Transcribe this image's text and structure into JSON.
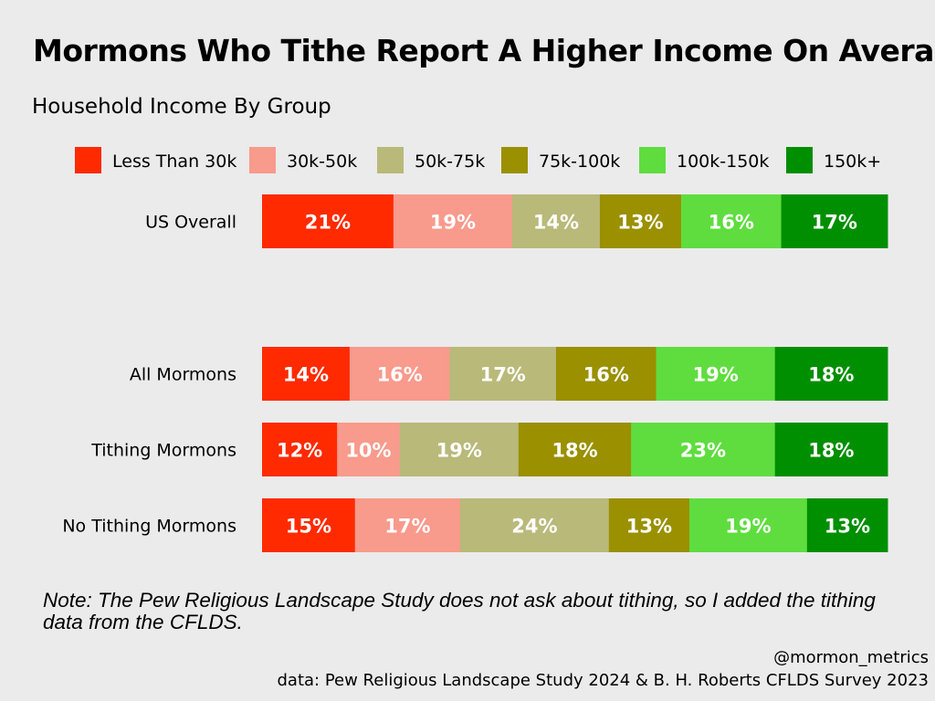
{
  "chart_data": {
    "type": "bar",
    "orientation": "horizontal",
    "stacked": true,
    "title": "Mormons Who Tithe Report A Higher Income On Average",
    "subtitle": "Household Income By Group",
    "xlabel": "",
    "ylabel": "",
    "legend_position": "top",
    "grid": false,
    "value_suffix": "%",
    "categories": [
      "US Overall",
      "All Mormons",
      "Tithing Mormons",
      "No Tithing Mormons"
    ],
    "series": [
      {
        "name": "Less Than 30k",
        "color": "#ff2a00",
        "values": [
          21,
          14,
          12,
          15
        ]
      },
      {
        "name": "30k-50k",
        "color": "#f89a8c",
        "values": [
          19,
          16,
          10,
          17
        ]
      },
      {
        "name": "50k-75k",
        "color": "#b9b97a",
        "values": [
          14,
          17,
          19,
          24
        ]
      },
      {
        "name": "75k-100k",
        "color": "#9a9000",
        "values": [
          13,
          16,
          18,
          13
        ]
      },
      {
        "name": "100k-150k",
        "color": "#5fdd3f",
        "values": [
          16,
          19,
          23,
          19
        ]
      },
      {
        "name": "150k+",
        "color": "#008f00",
        "values": [
          17,
          18,
          18,
          13
        ]
      }
    ]
  },
  "note": "Note: The Pew Religious Landscape Study does not ask about tithing, so I added the tithing data from the CFLDS.",
  "handle": "@mormon_metrics",
  "source": "data: Pew Religious Landscape Study 2024 & B. H. Roberts CFLDS Survey 2023"
}
